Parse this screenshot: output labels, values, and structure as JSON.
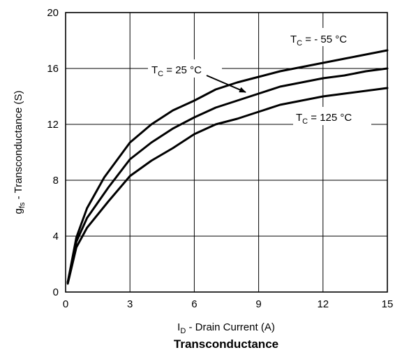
{
  "chart_data": {
    "type": "line",
    "title": "Transconductance",
    "xlabel": {
      "main": "I",
      "sub": "D",
      "rest": " - Drain Current (A)"
    },
    "ylabel": {
      "main": "g",
      "sub": "fs",
      "rest": " - Transconductance (S)"
    },
    "xlim": [
      0,
      15
    ],
    "ylim": [
      0,
      20
    ],
    "xticks": [
      0,
      3,
      6,
      9,
      12,
      15
    ],
    "yticks": [
      0,
      4,
      8,
      12,
      16,
      20
    ],
    "x_tick_labels": [
      "0",
      "3",
      "6",
      "9",
      "12",
      "15"
    ],
    "y_tick_labels": [
      "0",
      "4",
      "8",
      "12",
      "16",
      "20"
    ],
    "grid": true,
    "series": [
      {
        "name": {
          "main": "T",
          "sub": "C",
          "rest": " = - 55 °C"
        },
        "x": [
          0.1,
          0.5,
          1,
          1.8,
          3,
          4,
          5,
          6,
          7,
          8,
          9,
          10,
          11,
          12,
          13,
          14,
          15
        ],
        "y": [
          0.7,
          3.9,
          6.0,
          8.2,
          10.7,
          12.0,
          13.0,
          13.7,
          14.5,
          15.0,
          15.4,
          15.8,
          16.1,
          16.4,
          16.7,
          17.0,
          17.3
        ]
      },
      {
        "name": {
          "main": "T",
          "sub": "C",
          "rest": " = 25 °C"
        },
        "x": [
          0.1,
          0.5,
          1,
          2,
          3,
          4,
          5,
          6,
          7,
          8,
          9,
          10,
          11,
          12,
          13,
          14,
          15
        ],
        "y": [
          0.7,
          3.6,
          5.3,
          7.5,
          9.5,
          10.7,
          11.7,
          12.5,
          13.2,
          13.7,
          14.2,
          14.7,
          15.0,
          15.3,
          15.5,
          15.8,
          16.0
        ]
      },
      {
        "name": {
          "main": "T",
          "sub": "C",
          "rest": " = 125 °C"
        },
        "x": [
          0.1,
          0.5,
          1,
          2,
          3,
          4,
          5,
          6,
          7,
          8,
          9,
          10,
          11,
          12,
          13,
          14,
          15
        ],
        "y": [
          0.6,
          3.2,
          4.6,
          6.5,
          8.3,
          9.4,
          10.3,
          11.3,
          12.0,
          12.4,
          12.9,
          13.4,
          13.7,
          14.0,
          14.2,
          14.4,
          14.6
        ]
      }
    ],
    "annotations": [
      {
        "series": 0,
        "placement": "upper-right"
      },
      {
        "series": 1,
        "placement": "upper-middle, arrow pointing to curve"
      },
      {
        "series": 2,
        "placement": "lower-right"
      }
    ]
  }
}
